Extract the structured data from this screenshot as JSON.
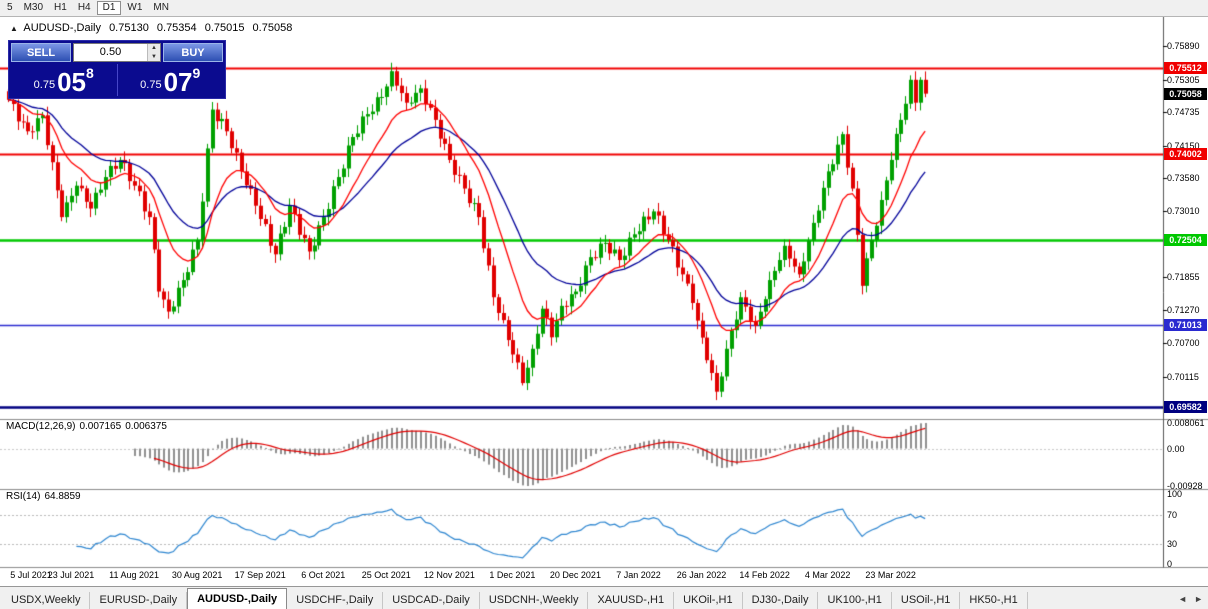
{
  "toolbar": {
    "timeframes": [
      "5",
      "M30",
      "H1",
      "H4",
      "D1",
      "W1",
      "MN"
    ],
    "active": "D1"
  },
  "chart": {
    "symbol_info": {
      "collapse_icon": "▲",
      "symbol": "AUDUSD-,Daily",
      "open": "0.75130",
      "high": "0.75354",
      "low": "0.75015",
      "close": "0.75058"
    },
    "trade_panel": {
      "sell_label": "SELL",
      "buy_label": "BUY",
      "volume": "0.50",
      "spin_up_icon": "▲",
      "spin_down_icon": "▼",
      "sell_price": {
        "base": "0.75",
        "big": "05",
        "sup": "8"
      },
      "buy_price": {
        "base": "0.75",
        "big": "07",
        "sup": "9"
      }
    },
    "y_ticks": [
      "0.75890",
      "0.75305",
      "0.74735",
      "0.74150",
      "0.73580",
      "0.73010",
      "0.71855",
      "0.71270",
      "0.70700",
      "0.70115"
    ],
    "levels": [
      {
        "label": "0.75512",
        "price": 0.75512,
        "color": "#F00000",
        "width": 2
      },
      {
        "label": "0.74002",
        "price": 0.74002,
        "color": "#F00000",
        "width": 2
      },
      {
        "label": "0.72504",
        "price": 0.72504,
        "color": "#00C800",
        "width": 2.5
      },
      {
        "label": "0.71013",
        "price": 0.71013,
        "color": "#2A2AD0",
        "width": 1.5
      },
      {
        "label": "0.69582",
        "price": 0.69582,
        "color": "#000080",
        "width": 2.5
      }
    ],
    "current_price": {
      "label": "0.75058",
      "price": 0.75058,
      "color": "#000000"
    }
  },
  "indicators": {
    "macd": {
      "title": "MACD(12,26,9)",
      "value_main": "0.007165",
      "value_signal": "0.006375",
      "scale_max": "0.008061",
      "scale_zero": "0.00",
      "scale_min": "-0.00928"
    },
    "rsi": {
      "title": "RSI(14)",
      "value": "64.8859",
      "scale_ticks": [
        "100",
        "70",
        "30",
        "0"
      ]
    }
  },
  "tabs": {
    "active": "AUDUSD-,Daily",
    "scroll_left_icon": "◄",
    "scroll_right_icon": "►",
    "items": [
      "USDX,Weekly",
      "EURUSD-,Daily",
      "AUDUSD-,Daily",
      "USDCHF-,Daily",
      "USDCAD-,Daily",
      "USDCNH-,Weekly",
      "XAUUSD-,H1",
      "UKOil-,H1",
      "DJ30-,Daily",
      "UK100-,H1",
      "USOil-,H1",
      "HK50-,H1"
    ]
  },
  "chart_data": {
    "type": "candlestick",
    "title": "AUDUSD-,Daily",
    "bars": 190,
    "last_bar": {
      "open": 0.7513,
      "high": 0.75354,
      "low": 0.75015,
      "close": 0.75058
    },
    "price_axis": {
      "min": 0.6939,
      "max": 0.7638,
      "tick_step": 0.00585
    },
    "x_axis_labels": [
      "5 Jul 2021",
      "23 Jul 2021",
      "11 Aug 2021",
      "30 Aug 2021",
      "17 Sep 2021",
      "6 Oct 2021",
      "25 Oct 2021",
      "12 Nov 2021",
      "1 Dec 2021",
      "20 Dec 2021",
      "7 Jan 2022",
      "26 Jan 2022",
      "14 Feb 2022",
      "4 Mar 2022",
      "23 Mar 2022"
    ],
    "horizontal_lines": [
      0.75512,
      0.74002,
      0.72504,
      0.71013,
      0.69582
    ],
    "price_path_anchors": [
      [
        0,
        0.7495
      ],
      [
        4,
        0.744
      ],
      [
        7,
        0.7468
      ],
      [
        11,
        0.729
      ],
      [
        14,
        0.7345
      ],
      [
        17,
        0.7305
      ],
      [
        20,
        0.736
      ],
      [
        23,
        0.739
      ],
      [
        26,
        0.7345
      ],
      [
        29,
        0.729
      ],
      [
        31,
        0.716
      ],
      [
        33,
        0.7125
      ],
      [
        36,
        0.718
      ],
      [
        39,
        0.725
      ],
      [
        42,
        0.7478
      ],
      [
        45,
        0.744
      ],
      [
        48,
        0.737
      ],
      [
        51,
        0.731
      ],
      [
        55,
        0.7225
      ],
      [
        58,
        0.731
      ],
      [
        62,
        0.723
      ],
      [
        65,
        0.729
      ],
      [
        68,
        0.736
      ],
      [
        71,
        0.743
      ],
      [
        74,
        0.747
      ],
      [
        77,
        0.75
      ],
      [
        79,
        0.7545
      ],
      [
        82,
        0.749
      ],
      [
        85,
        0.7515
      ],
      [
        88,
        0.746
      ],
      [
        91,
        0.739
      ],
      [
        94,
        0.734
      ],
      [
        97,
        0.729
      ],
      [
        100,
        0.715
      ],
      [
        102,
        0.711
      ],
      [
        104,
        0.705
      ],
      [
        106,
        0.7
      ],
      [
        108,
        0.706
      ],
      [
        110,
        0.713
      ],
      [
        112,
        0.708
      ],
      [
        114,
        0.7135
      ],
      [
        117,
        0.716
      ],
      [
        120,
        0.722
      ],
      [
        123,
        0.7245
      ],
      [
        126,
        0.7215
      ],
      [
        129,
        0.726
      ],
      [
        133,
        0.73
      ],
      [
        136,
        0.725
      ],
      [
        139,
        0.719
      ],
      [
        141,
        0.714
      ],
      [
        144,
        0.704
      ],
      [
        146,
        0.6985
      ],
      [
        148,
        0.706
      ],
      [
        151,
        0.715
      ],
      [
        154,
        0.71
      ],
      [
        157,
        0.718
      ],
      [
        160,
        0.724
      ],
      [
        163,
        0.719
      ],
      [
        166,
        0.728
      ],
      [
        169,
        0.737
      ],
      [
        172,
        0.7435
      ],
      [
        174,
        0.734
      ],
      [
        176,
        0.717
      ],
      [
        178,
        0.725
      ],
      [
        180,
        0.732
      ],
      [
        182,
        0.739
      ],
      [
        184,
        0.746
      ],
      [
        186,
        0.753
      ],
      [
        187,
        0.749
      ],
      [
        188,
        0.753
      ],
      [
        189,
        0.75058
      ]
    ],
    "overlays": [
      {
        "type": "ema",
        "period": 12,
        "color_key": "ma_fast"
      },
      {
        "type": "ema",
        "period": 26,
        "color_key": "ma_slow"
      }
    ],
    "indicator_defs": [
      {
        "type": "macd",
        "fast": 12,
        "slow": 26,
        "signal": 9,
        "last_main": 0.007165,
        "last_signal": 0.006375,
        "scale_max": 0.008061,
        "scale_min": -0.00928
      },
      {
        "type": "rsi",
        "period": 14,
        "last": 64.8859,
        "levels": [
          70,
          30
        ]
      }
    ],
    "colors": {
      "up": "#00A000",
      "down": "#E00000",
      "ma_fast": "#FF0000",
      "ma_slow": "#000099",
      "macd_histogram": "#909090",
      "macd_signal": "#E00000",
      "rsi": "#2E86D0"
    }
  }
}
